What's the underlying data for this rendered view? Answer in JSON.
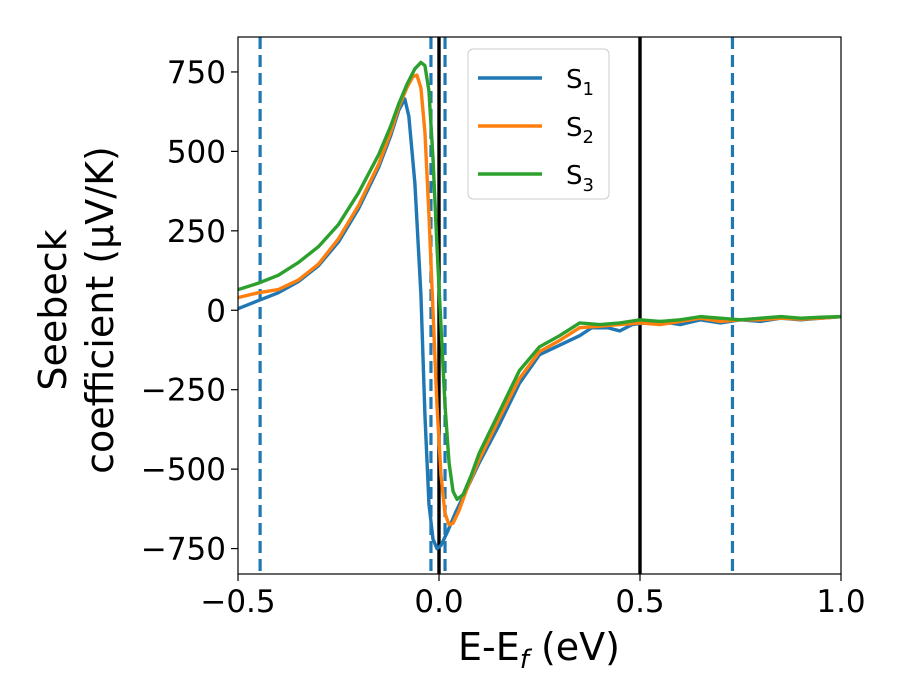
{
  "chart_data": {
    "type": "line",
    "xlabel": "E-E",
    "xlabel_sub": "f",
    "xlabel_unit": " (eV)",
    "ylabel_line1": "Seebeck",
    "ylabel_line2": "coefficient  (μV/K)",
    "xlim": [
      -0.5,
      1.0
    ],
    "ylim": [
      -830,
      860
    ],
    "x_ticks": [
      -0.5,
      0.0,
      0.5,
      1.0
    ],
    "x_tick_labels": [
      "−0.5",
      "0.0",
      "0.5",
      "1.0"
    ],
    "y_ticks": [
      750,
      500,
      250,
      0,
      -250,
      -500,
      -750
    ],
    "y_tick_labels": [
      "750",
      "500",
      "250",
      "0",
      "−250",
      "−500",
      "−750"
    ],
    "grid": false,
    "legend_position": "top-center",
    "series": [
      {
        "name": "S",
        "sub": "1",
        "color": "#1f77b4",
        "points": [
          [
            -0.5,
            5
          ],
          [
            -0.45,
            30
          ],
          [
            -0.4,
            55
          ],
          [
            -0.35,
            90
          ],
          [
            -0.3,
            140
          ],
          [
            -0.25,
            215
          ],
          [
            -0.2,
            320
          ],
          [
            -0.15,
            450
          ],
          [
            -0.12,
            550
          ],
          [
            -0.1,
            630
          ],
          [
            -0.085,
            665
          ],
          [
            -0.075,
            610
          ],
          [
            -0.06,
            400
          ],
          [
            -0.045,
            50
          ],
          [
            -0.035,
            -330
          ],
          [
            -0.025,
            -610
          ],
          [
            -0.015,
            -720
          ],
          [
            -0.005,
            -750
          ],
          [
            0.005,
            -740
          ],
          [
            0.02,
            -700
          ],
          [
            0.04,
            -640
          ],
          [
            0.07,
            -560
          ],
          [
            0.1,
            -480
          ],
          [
            0.15,
            -360
          ],
          [
            0.2,
            -230
          ],
          [
            0.25,
            -140
          ],
          [
            0.3,
            -110
          ],
          [
            0.35,
            -80
          ],
          [
            0.38,
            -55
          ],
          [
            0.42,
            -55
          ],
          [
            0.45,
            -65
          ],
          [
            0.48,
            -45
          ],
          [
            0.55,
            -35
          ],
          [
            0.6,
            -45
          ],
          [
            0.65,
            -30
          ],
          [
            0.7,
            -40
          ],
          [
            0.75,
            -30
          ],
          [
            0.8,
            -35
          ],
          [
            0.85,
            -25
          ],
          [
            0.9,
            -30
          ],
          [
            0.95,
            -25
          ],
          [
            1.0,
            -20
          ]
        ]
      },
      {
        "name": "S",
        "sub": "2",
        "color": "#ff7f0e",
        "points": [
          [
            -0.5,
            40
          ],
          [
            -0.45,
            55
          ],
          [
            -0.4,
            65
          ],
          [
            -0.35,
            95
          ],
          [
            -0.3,
            145
          ],
          [
            -0.25,
            225
          ],
          [
            -0.2,
            330
          ],
          [
            -0.15,
            460
          ],
          [
            -0.12,
            560
          ],
          [
            -0.1,
            640
          ],
          [
            -0.08,
            700
          ],
          [
            -0.065,
            735
          ],
          [
            -0.055,
            740
          ],
          [
            -0.045,
            700
          ],
          [
            -0.035,
            560
          ],
          [
            -0.025,
            300
          ],
          [
            -0.015,
            0
          ],
          [
            -0.005,
            -300
          ],
          [
            0.005,
            -520
          ],
          [
            0.015,
            -640
          ],
          [
            0.025,
            -675
          ],
          [
            0.035,
            -670
          ],
          [
            0.05,
            -630
          ],
          [
            0.07,
            -560
          ],
          [
            0.1,
            -470
          ],
          [
            0.15,
            -340
          ],
          [
            0.2,
            -215
          ],
          [
            0.25,
            -130
          ],
          [
            0.3,
            -95
          ],
          [
            0.35,
            -55
          ],
          [
            0.4,
            -50
          ],
          [
            0.45,
            -45
          ],
          [
            0.5,
            -40
          ],
          [
            0.55,
            -45
          ],
          [
            0.6,
            -35
          ],
          [
            0.65,
            -25
          ],
          [
            0.7,
            -35
          ],
          [
            0.75,
            -30
          ],
          [
            0.8,
            -30
          ],
          [
            0.85,
            -25
          ],
          [
            0.9,
            -28
          ],
          [
            0.95,
            -25
          ],
          [
            1.0,
            -20
          ]
        ]
      },
      {
        "name": "S",
        "sub": "3",
        "color": "#2ca02c",
        "points": [
          [
            -0.5,
            65
          ],
          [
            -0.45,
            85
          ],
          [
            -0.4,
            110
          ],
          [
            -0.35,
            150
          ],
          [
            -0.3,
            200
          ],
          [
            -0.25,
            270
          ],
          [
            -0.2,
            370
          ],
          [
            -0.15,
            490
          ],
          [
            -0.12,
            580
          ],
          [
            -0.1,
            650
          ],
          [
            -0.08,
            710
          ],
          [
            -0.06,
            760
          ],
          [
            -0.045,
            780
          ],
          [
            -0.035,
            770
          ],
          [
            -0.025,
            690
          ],
          [
            -0.015,
            480
          ],
          [
            -0.005,
            200
          ],
          [
            0.005,
            -50
          ],
          [
            0.015,
            -300
          ],
          [
            0.025,
            -480
          ],
          [
            0.035,
            -570
          ],
          [
            0.045,
            -595
          ],
          [
            0.06,
            -580
          ],
          [
            0.08,
            -520
          ],
          [
            0.1,
            -450
          ],
          [
            0.15,
            -320
          ],
          [
            0.2,
            -190
          ],
          [
            0.25,
            -115
          ],
          [
            0.3,
            -80
          ],
          [
            0.35,
            -40
          ],
          [
            0.4,
            -45
          ],
          [
            0.45,
            -40
          ],
          [
            0.5,
            -30
          ],
          [
            0.55,
            -35
          ],
          [
            0.6,
            -30
          ],
          [
            0.65,
            -20
          ],
          [
            0.7,
            -25
          ],
          [
            0.75,
            -30
          ],
          [
            0.8,
            -25
          ],
          [
            0.85,
            -20
          ],
          [
            0.9,
            -25
          ],
          [
            0.95,
            -22
          ],
          [
            1.0,
            -20
          ]
        ]
      }
    ],
    "vertical_lines": [
      {
        "x": -0.445,
        "style": "dashed",
        "color": "#1f77b4"
      },
      {
        "x": -0.02,
        "style": "dashed",
        "color": "#1f77b4"
      },
      {
        "x": 0.015,
        "style": "dashed",
        "color": "#1f77b4"
      },
      {
        "x": 0.73,
        "style": "dashed",
        "color": "#1f77b4"
      },
      {
        "x": 0.0,
        "style": "solid",
        "color": "#000000"
      },
      {
        "x": 0.5,
        "style": "solid",
        "color": "#000000"
      }
    ]
  }
}
